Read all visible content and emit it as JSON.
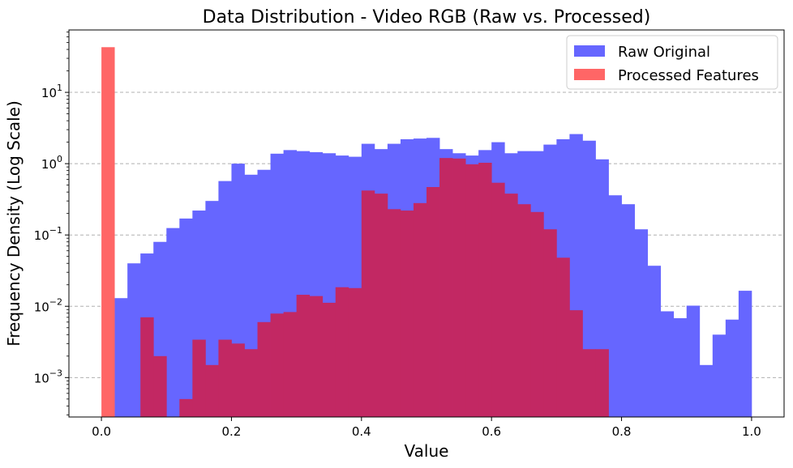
{
  "chart_data": {
    "type": "bar",
    "subtype": "histogram",
    "title": "Data Distribution - Video RGB (Raw vs. Processed)",
    "xlabel": "Value",
    "ylabel": "Frequency Density (Log Scale)",
    "xlim": [
      -0.05,
      1.05
    ],
    "ylim": [
      0.00028,
      75
    ],
    "yscale": "log",
    "x_ticks": [
      "0.0",
      "0.2",
      "0.4",
      "0.6",
      "0.8",
      "1.0"
    ],
    "y_ticks": [
      {
        "base": "10",
        "exp": "1"
      },
      {
        "base": "10",
        "exp": "0"
      },
      {
        "base": "10",
        "exp": "−1"
      },
      {
        "base": "10",
        "exp": "−2"
      },
      {
        "base": "10",
        "exp": "−3"
      }
    ],
    "grid": "y-dashed",
    "legend_position": "top-right",
    "bin_width": 0.02,
    "bin_start": 0.0,
    "series": [
      {
        "name": "Raw Original",
        "color": "#6666ff",
        "values": [
          0,
          0.013,
          0.04,
          0.055,
          0.08,
          0.125,
          0.17,
          0.22,
          0.3,
          0.57,
          1.0,
          0.7,
          0.82,
          1.38,
          1.55,
          1.5,
          1.45,
          1.4,
          1.3,
          1.25,
          1.9,
          1.6,
          1.9,
          2.2,
          2.25,
          2.3,
          1.6,
          1.4,
          1.3,
          1.55,
          2.0,
          1.4,
          1.5,
          1.5,
          1.85,
          2.2,
          2.6,
          2.1,
          1.15,
          0.36,
          0.27,
          0.12,
          0.037,
          0.0085,
          0.0068,
          0.0102,
          0.0015,
          0.004,
          0.0065,
          0.0165
        ]
      },
      {
        "name": "Processed Features",
        "color": "#ff6666",
        "values": [
          43,
          0,
          0,
          0.007,
          0.002,
          0,
          0.0005,
          0.0034,
          0.0015,
          0.0034,
          0.003,
          0.0025,
          0.006,
          0.0079,
          0.0083,
          0.0145,
          0.0139,
          0.0112,
          0.0185,
          0.018,
          0.42,
          0.38,
          0.23,
          0.22,
          0.28,
          0.47,
          1.2,
          1.18,
          0.98,
          1.03,
          0.54,
          0.38,
          0.27,
          0.21,
          0.12,
          0.048,
          0.0088,
          0.0025,
          0.0025,
          0
        ]
      }
    ],
    "overlap_color": "#c22863"
  }
}
